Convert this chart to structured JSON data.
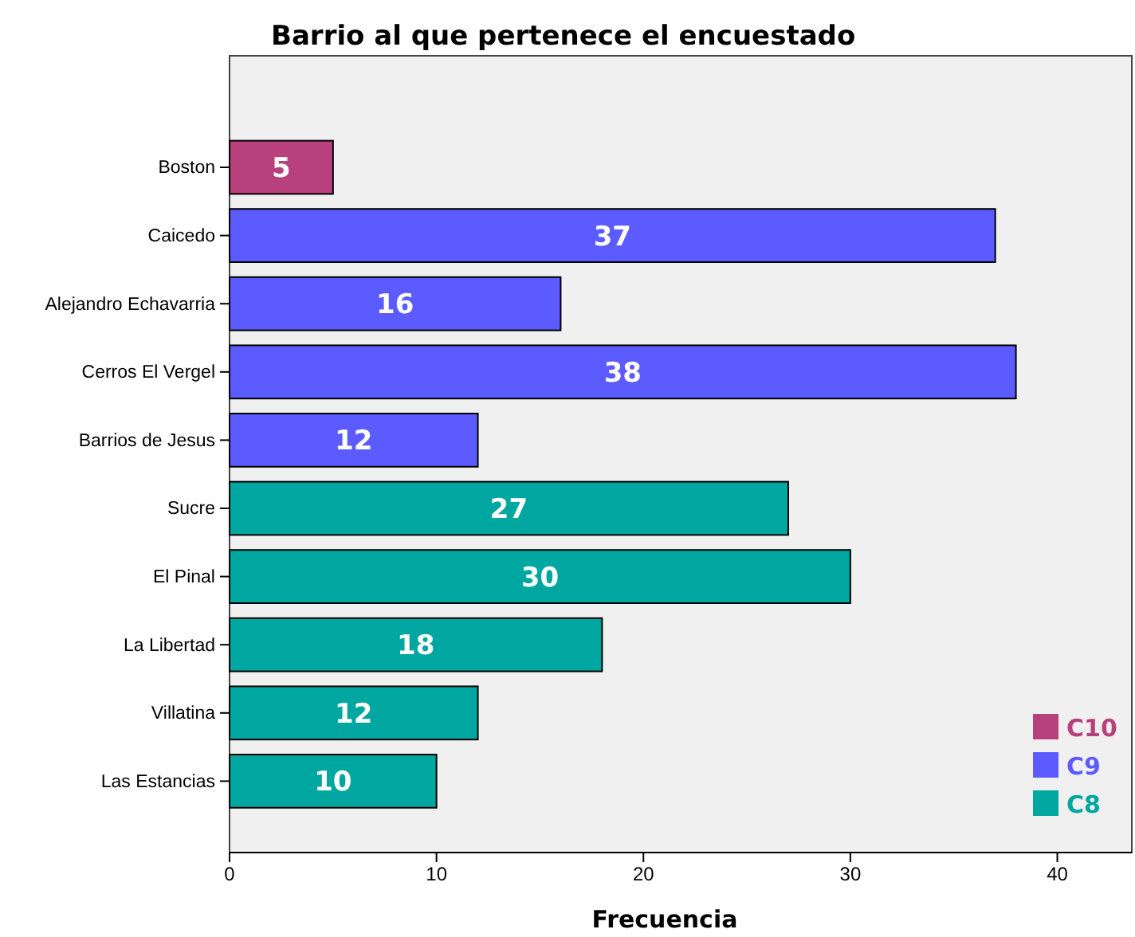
{
  "chart_data": {
    "type": "bar",
    "orientation": "horizontal",
    "title": "Barrio al que pertenece el encuestado",
    "xlabel": "Frecuencia",
    "categories": [
      "Boston",
      "Caicedo",
      "Alejandro Echavarria",
      "Cerros El Vergel",
      "Barrios de Jesus",
      "Sucre",
      "El Pinal",
      "La Libertad",
      "Villatina",
      "Las Estancias"
    ],
    "series": [
      {
        "name": "C10",
        "color": "#b8407c",
        "values": [
          5,
          null,
          null,
          null,
          null,
          null,
          null,
          null,
          null,
          null
        ]
      },
      {
        "name": "C9",
        "color": "#5b5bff",
        "values": [
          null,
          37,
          16,
          38,
          12,
          null,
          null,
          null,
          null,
          null
        ]
      },
      {
        "name": "C8",
        "color": "#00a6a0",
        "values": [
          null,
          null,
          null,
          null,
          null,
          27,
          30,
          18,
          12,
          10
        ]
      }
    ],
    "xlim": [
      0,
      43.6
    ],
    "xticks": [
      0,
      10,
      20,
      30,
      40
    ],
    "data_labels": true,
    "grid": false,
    "legend": "bottom right"
  }
}
